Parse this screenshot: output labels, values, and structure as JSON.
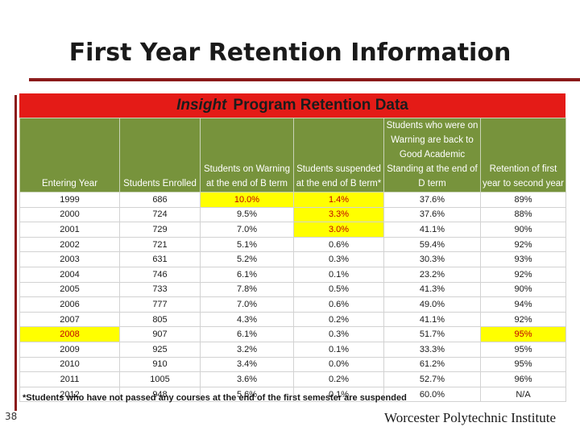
{
  "slide": {
    "title": "First Year Retention Information",
    "page_number": "38",
    "institution": "Worcester Polytechnic Institute"
  },
  "panel": {
    "title_italic": "Insight",
    "title_rest": "Program Retention Data",
    "footnote": "*Students who have not passed any courses at the end of the first semester are suspended"
  },
  "colors": {
    "header_red": "#e41b17",
    "header_green": "#77933c",
    "highlight_yellow": "#ffff00",
    "emphasis_red": "#c00000",
    "rule_maroon": "#8b1a1a"
  },
  "table": {
    "headers": [
      "Entering Year",
      "Students Enrolled",
      "Students on Warning at the end of B term",
      "Students suspended at the end of B term*",
      "Students who were on Warning are back to Good Academic Standing at the end of D term",
      "Retention of first year to second year"
    ],
    "rows": [
      [
        "1999",
        "686",
        "10.0%",
        "1.4%",
        "37.6%",
        "89%"
      ],
      [
        "2000",
        "724",
        "9.5%",
        "3.3%",
        "37.6%",
        "88%"
      ],
      [
        "2001",
        "729",
        "7.0%",
        "3.0%",
        "41.1%",
        "90%"
      ],
      [
        "2002",
        "721",
        "5.1%",
        "0.6%",
        "59.4%",
        "92%"
      ],
      [
        "2003",
        "631",
        "5.2%",
        "0.3%",
        "30.3%",
        "93%"
      ],
      [
        "2004",
        "746",
        "6.1%",
        "0.1%",
        "23.2%",
        "92%"
      ],
      [
        "2005",
        "733",
        "7.8%",
        "0.5%",
        "41.3%",
        "90%"
      ],
      [
        "2006",
        "777",
        "7.0%",
        "0.6%",
        "49.0%",
        "94%"
      ],
      [
        "2007",
        "805",
        "4.3%",
        "0.2%",
        "41.1%",
        "92%"
      ],
      [
        "2008",
        "907",
        "6.1%",
        "0.3%",
        "51.7%",
        "95%"
      ],
      [
        "2009",
        "925",
        "3.2%",
        "0.1%",
        "33.3%",
        "95%"
      ],
      [
        "2010",
        "910",
        "3.4%",
        "0.0%",
        "61.2%",
        "95%"
      ],
      [
        "2011",
        "1005",
        "3.6%",
        "0.2%",
        "52.7%",
        "96%"
      ],
      [
        "2012",
        "948",
        "5.6%",
        "0.1%",
        "60.0%",
        "N/A"
      ]
    ],
    "highlights": [
      {
        "row": 0,
        "col": 2,
        "red": true
      },
      {
        "row": 0,
        "col": 3,
        "red": true
      },
      {
        "row": 1,
        "col": 3,
        "red": true
      },
      {
        "row": 2,
        "col": 3,
        "red": true
      },
      {
        "row": 9,
        "col": 0,
        "red": true
      },
      {
        "row": 9,
        "col": 5,
        "red": true
      }
    ]
  }
}
